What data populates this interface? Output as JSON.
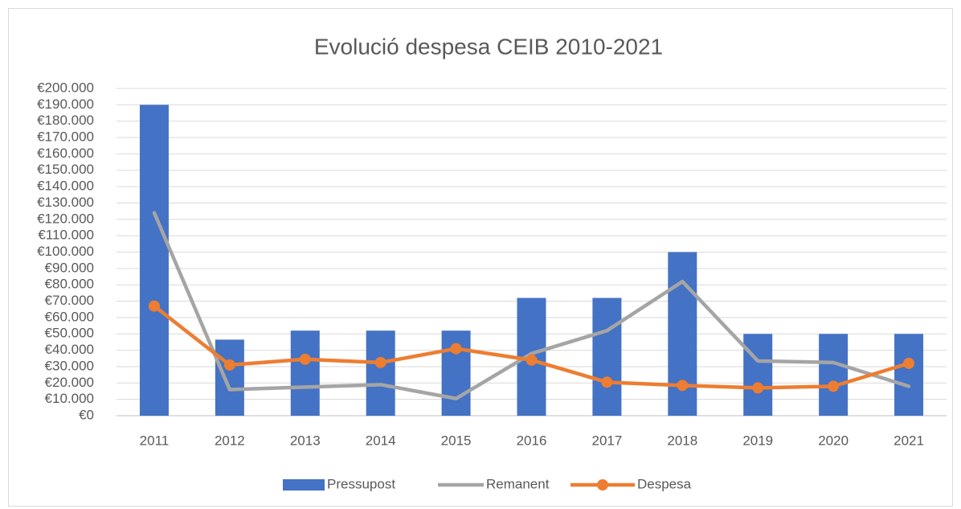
{
  "chart_data": {
    "type": "combo",
    "title": "Evolució despesa CEIB 2010-2021",
    "categories": [
      "2011",
      "2012",
      "2013",
      "2014",
      "2015",
      "2016",
      "2017",
      "2018",
      "2019",
      "2020",
      "2021"
    ],
    "series": [
      {
        "name": "Pressupost",
        "type": "bar",
        "color": "#4472c4",
        "values": [
          190000,
          46500,
          52000,
          52000,
          52000,
          72000,
          72000,
          100000,
          50000,
          50000,
          50000
        ]
      },
      {
        "name": "Remanent",
        "type": "line",
        "color": "#a5a5a5",
        "values": [
          124000,
          16000,
          17500,
          19000,
          10500,
          38000,
          52000,
          82000,
          33500,
          32500,
          18000
        ]
      },
      {
        "name": "Despesa",
        "type": "line",
        "markers": true,
        "color": "#ed7d31",
        "values": [
          67000,
          31000,
          34500,
          32500,
          41000,
          34000,
          20500,
          18500,
          17000,
          18000,
          32000
        ]
      }
    ],
    "ylim": [
      0,
      200000
    ],
    "yticks": [
      {
        "value": 0,
        "label": "€0"
      },
      {
        "value": 10000,
        "label": "€10.000"
      },
      {
        "value": 20000,
        "label": "€20.000"
      },
      {
        "value": 30000,
        "label": "€30.000"
      },
      {
        "value": 40000,
        "label": "€40.000"
      },
      {
        "value": 50000,
        "label": "€50.000"
      },
      {
        "value": 60000,
        "label": "€60.000"
      },
      {
        "value": 70000,
        "label": "€70.000"
      },
      {
        "value": 80000,
        "label": "€80.000"
      },
      {
        "value": 90000,
        "label": "€90.000"
      },
      {
        "value": 100000,
        "label": "€100.000"
      },
      {
        "value": 110000,
        "label": "€110.000"
      },
      {
        "value": 120000,
        "label": "€120.000"
      },
      {
        "value": 130000,
        "label": "€130.000"
      },
      {
        "value": 140000,
        "label": "€140.000"
      },
      {
        "value": 150000,
        "label": "€150.000"
      },
      {
        "value": 160000,
        "label": "€160.000"
      },
      {
        "value": 170000,
        "label": "€170.000"
      },
      {
        "value": 180000,
        "label": "€180.000"
      },
      {
        "value": 190000,
        "label": "€190.000"
      },
      {
        "value": 200000,
        "label": "€200.000"
      }
    ],
    "grid": true,
    "legend": "bottom"
  }
}
